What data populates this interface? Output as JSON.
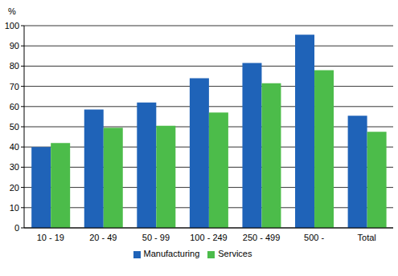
{
  "chart_data": {
    "type": "bar",
    "y_label": "%",
    "categories": [
      "10 - 19",
      "20 - 49",
      "50 - 99",
      "100 - 249",
      "250 - 499",
      "500 -",
      "Total"
    ],
    "series": [
      {
        "name": "Manufacturing",
        "color": "#1f63b8",
        "values": [
          40,
          58.5,
          62,
          74,
          81.5,
          95.5,
          55.5
        ]
      },
      {
        "name": "Services",
        "color": "#4cbc4a",
        "values": [
          42,
          49.5,
          50.5,
          57,
          71.5,
          78,
          47.5
        ]
      }
    ],
    "ylim": [
      0,
      100
    ],
    "yticks": [
      0,
      10,
      20,
      30,
      40,
      50,
      60,
      70,
      80,
      90,
      100
    ],
    "grid": true,
    "legend": "bottom"
  }
}
